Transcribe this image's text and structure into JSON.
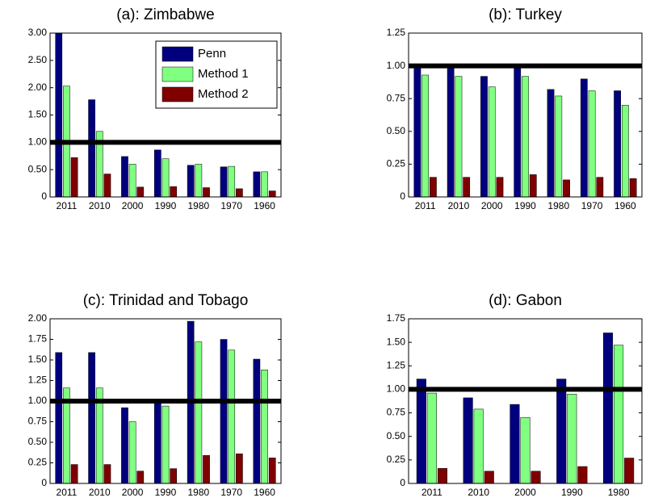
{
  "chart_data": [
    {
      "type": "bar",
      "title": "(a): Zimbabwe",
      "categories": [
        "2011",
        "2010",
        "2000",
        "1990",
        "1980",
        "1970",
        "1960"
      ],
      "series": [
        {
          "name": "Penn",
          "color": "#00007f",
          "values": [
            3.0,
            1.78,
            0.74,
            0.86,
            0.58,
            0.55,
            0.46
          ]
        },
        {
          "name": "Method 1",
          "color": "#80ff80",
          "values": [
            2.03,
            1.2,
            0.6,
            0.7,
            0.6,
            0.56,
            0.46
          ]
        },
        {
          "name": "Method 2",
          "color": "#800000",
          "values": [
            0.72,
            0.42,
            0.18,
            0.19,
            0.17,
            0.15,
            0.11
          ]
        }
      ],
      "ylim": [
        0,
        3
      ],
      "yticks": [
        0,
        {
          "value": 0.5,
          "label": "0.50"
        },
        {
          "value": 1,
          "label": "1.00"
        },
        {
          "value": 1.5,
          "label": "1.50"
        },
        {
          "value": 2,
          "label": "2.00"
        },
        {
          "value": 2.5,
          "label": "2.50"
        },
        {
          "value": 3,
          "label": "3.00"
        }
      ],
      "reference_line": 1,
      "legend": "upper right"
    },
    {
      "type": "bar",
      "title": "(b): Turkey",
      "categories": [
        "2011",
        "2010",
        "2000",
        "1990",
        "1980",
        "1970",
        "1960"
      ],
      "series": [
        {
          "color": "#00007f",
          "values": [
            1.0,
            1.0,
            0.92,
            1.0,
            0.82,
            0.9,
            0.81
          ]
        },
        {
          "color": "#80ff80",
          "values": [
            0.93,
            0.92,
            0.84,
            0.92,
            0.77,
            0.81,
            0.7
          ]
        },
        {
          "color": "#800000",
          "values": [
            0.15,
            0.15,
            0.15,
            0.17,
            0.13,
            0.15,
            0.14
          ]
        }
      ],
      "ylim": [
        0,
        1.25
      ],
      "yticks": [
        0,
        {
          "value": 0.25,
          "label": "0.25"
        },
        {
          "value": 0.5,
          "label": "0.50"
        },
        {
          "value": 0.75,
          "label": "0.75"
        },
        {
          "value": 1,
          "label": "1.00"
        },
        {
          "value": 1.25,
          "label": "1.25"
        }
      ],
      "reference_line": 1
    },
    {
      "type": "bar",
      "title": "(c): Trinidad and Tobago",
      "categories": [
        "2011",
        "2010",
        "2000",
        "1990",
        "1980",
        "1970",
        "1960"
      ],
      "series": [
        {
          "color": "#00007f",
          "values": [
            1.59,
            1.59,
            0.92,
            0.98,
            1.97,
            1.75,
            1.51
          ]
        },
        {
          "color": "#80ff80",
          "values": [
            1.16,
            1.16,
            0.75,
            0.94,
            1.72,
            1.62,
            1.38
          ]
        },
        {
          "color": "#800000",
          "values": [
            0.23,
            0.23,
            0.15,
            0.18,
            0.34,
            0.36,
            0.31
          ]
        }
      ],
      "ylim": [
        0,
        2
      ],
      "yticks": [
        0,
        {
          "value": 0.25,
          "label": "0.25"
        },
        {
          "value": 0.5,
          "label": "0.50"
        },
        {
          "value": 0.75,
          "label": "0.75"
        },
        {
          "value": 1,
          "label": "1.00"
        },
        {
          "value": 1.25,
          "label": "1.25"
        },
        {
          "value": 1.5,
          "label": "1.50"
        },
        {
          "value": 1.75,
          "label": "1.75"
        },
        {
          "value": 2,
          "label": "2.00"
        }
      ],
      "reference_line": 1
    },
    {
      "type": "bar",
      "title": "(d): Gabon",
      "categories": [
        "2011",
        "2010",
        "2000",
        "1990",
        "1980"
      ],
      "series": [
        {
          "color": "#00007f",
          "values": [
            1.11,
            0.91,
            0.84,
            1.11,
            1.6
          ]
        },
        {
          "color": "#80ff80",
          "values": [
            0.96,
            0.79,
            0.7,
            0.95,
            1.47
          ]
        },
        {
          "color": "#800000",
          "values": [
            0.16,
            0.13,
            0.13,
            0.18,
            0.27
          ]
        }
      ],
      "ylim": [
        0,
        1.75
      ],
      "yticks": [
        0,
        {
          "value": 0.25,
          "label": "0.25"
        },
        {
          "value": 0.5,
          "label": "0.50"
        },
        {
          "value": 0.75,
          "label": "0.75"
        },
        {
          "value": 1,
          "label": "1.00"
        },
        {
          "value": 1.25,
          "label": "1.25"
        },
        {
          "value": 1.5,
          "label": "1.50"
        },
        {
          "value": 1.75,
          "label": "1.75"
        }
      ],
      "reference_line": 1
    }
  ]
}
